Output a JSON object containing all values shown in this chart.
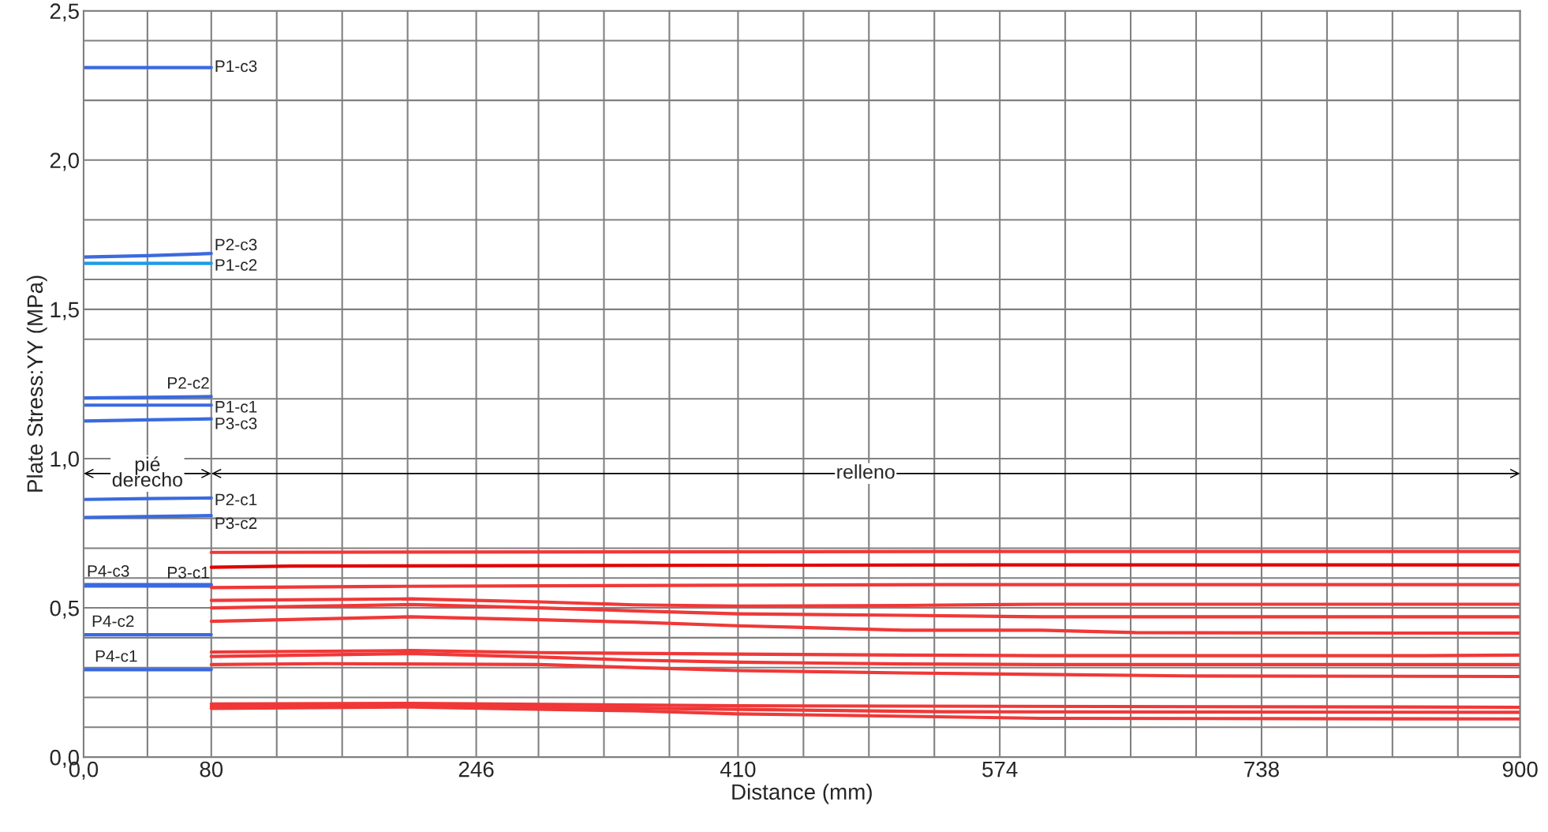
{
  "chart_data": {
    "type": "line",
    "xlabel": "Distance (mm)",
    "ylabel": "Plate Stress:YY (MPa)",
    "xlim": [
      0,
      900
    ],
    "ylim": [
      0,
      2.5
    ],
    "xticks": [
      {
        "value": 0,
        "label": "0,0"
      },
      {
        "value": 40,
        "label": null
      },
      80,
      {
        "value": 121,
        "label": null
      },
      {
        "value": 162,
        "label": null
      },
      {
        "value": 203,
        "label": null
      },
      246,
      {
        "value": 285,
        "label": null
      },
      {
        "value": 326,
        "label": null
      },
      {
        "value": 367,
        "label": null
      },
      410,
      {
        "value": 451,
        "label": null
      },
      {
        "value": 492,
        "label": null
      },
      {
        "value": 533,
        "label": null
      },
      574,
      {
        "value": 615,
        "label": null
      },
      {
        "value": 656,
        "label": null
      },
      {
        "value": 697,
        "label": null
      },
      738,
      {
        "value": 779,
        "label": null
      },
      {
        "value": 820,
        "label": null
      },
      {
        "value": 861,
        "label": null
      },
      900
    ],
    "yticks": [
      {
        "value": 0,
        "label": "0,0"
      },
      {
        "value": 0.1,
        "label": null
      },
      {
        "value": 0.2,
        "label": null
      },
      {
        "value": 0.3,
        "label": null
      },
      {
        "value": 0.4,
        "label": null
      },
      {
        "value": 0.5,
        "label": "0,5"
      },
      {
        "value": 0.6,
        "label": null
      },
      {
        "value": 0.7,
        "label": null
      },
      {
        "value": 0.8,
        "label": null
      },
      {
        "value": 1.0,
        "label": "1,0"
      },
      {
        "value": 1.2,
        "label": null
      },
      {
        "value": 1.4,
        "label": null
      },
      {
        "value": 1.5,
        "label": "1,5"
      },
      {
        "value": 1.6,
        "label": null
      },
      {
        "value": 1.8,
        "label": null
      },
      {
        "value": 2.0,
        "label": "2,0"
      },
      {
        "value": 2.2,
        "label": null
      },
      {
        "value": 2.4,
        "label": null
      },
      {
        "value": 2.5,
        "label": "2,5"
      }
    ],
    "grid": true,
    "legend": false,
    "line_style": "solid",
    "marker": "none",
    "annotations": [
      "pié\nderecho",
      "relleno"
    ],
    "series": [
      {
        "name": "P1-c3",
        "color": "#3a6ae0",
        "x": [
          0,
          80
        ],
        "values": [
          2.31,
          2.31
        ]
      },
      {
        "name": "P2-c3",
        "color": "#3a6ae0",
        "x": [
          0,
          40,
          80
        ],
        "values": [
          1.675,
          1.68,
          1.687
        ]
      },
      {
        "name": "P1-c2",
        "color": "#1e9be6",
        "x": [
          0,
          80
        ],
        "values": [
          1.654,
          1.654
        ]
      },
      {
        "name": "P2-c2",
        "color": "#3a6ae0",
        "x": [
          0,
          40,
          80
        ],
        "values": [
          1.203,
          1.205,
          1.208
        ]
      },
      {
        "name": "P1-c1",
        "color": "#3a6ae0",
        "x": [
          0,
          80
        ],
        "values": [
          1.179,
          1.179
        ]
      },
      {
        "name": "P3-c3",
        "color": "#3a6ae0",
        "x": [
          0,
          40,
          80
        ],
        "values": [
          1.126,
          1.13,
          1.133
        ]
      },
      {
        "name": "P2-c1",
        "color": "#3a6ae0",
        "x": [
          0,
          40,
          80
        ],
        "values": [
          0.863,
          0.866,
          0.868
        ]
      },
      {
        "name": "P3-c2",
        "color": "#3a6ae0",
        "x": [
          0,
          40,
          80
        ],
        "values": [
          0.803,
          0.806,
          0.809
        ]
      },
      {
        "name": "P4-c3",
        "color": "#3a6ae0",
        "x": [
          0,
          80
        ],
        "values": [
          0.578,
          0.578
        ]
      },
      {
        "name": "P3-c1",
        "color": "#3a6ae0",
        "x": [
          0,
          80
        ],
        "values": [
          0.573,
          0.573
        ]
      },
      {
        "name": "P4-c2",
        "color": "#3a6ae0",
        "x": [
          0,
          80
        ],
        "values": [
          0.41,
          0.41
        ]
      },
      {
        "name": "P4-c1",
        "color": "#3a6ae0",
        "x": [
          0,
          80
        ],
        "values": [
          0.293,
          0.293
        ]
      },
      {
        "color": "#f03838",
        "x": [
          80,
          538,
          900
        ],
        "values": [
          0.686,
          0.689,
          0.689
        ]
      },
      {
        "color": "#e00000",
        "x": [
          80,
          130,
          560,
          900
        ],
        "values": [
          0.636,
          0.64,
          0.644,
          0.644
        ]
      },
      {
        "color": "#f03838",
        "x": [
          80,
          190,
          540,
          900
        ],
        "values": [
          0.568,
          0.572,
          0.578,
          0.578
        ]
      },
      {
        "color": "#f03838",
        "x": [
          80,
          205,
          286,
          345,
          410,
          514,
          600,
          780,
          900
        ],
        "values": [
          0.525,
          0.53,
          0.52,
          0.51,
          0.506,
          0.508,
          0.512,
          0.512,
          0.512
        ]
      },
      {
        "color": "#f03838",
        "x": [
          80,
          205,
          286,
          345,
          410,
          514,
          600,
          900
        ],
        "values": [
          0.5,
          0.511,
          0.5,
          0.49,
          0.48,
          0.475,
          0.47,
          0.47
        ]
      },
      {
        "color": "#f03838",
        "x": [
          80,
          205,
          286,
          345,
          410,
          447,
          514,
          600,
          659,
          900
        ],
        "values": [
          0.455,
          0.47,
          0.46,
          0.452,
          0.44,
          0.435,
          0.425,
          0.425,
          0.417,
          0.415
        ]
      },
      {
        "color": "#f03838",
        "x": [
          80,
          205,
          286,
          410,
          514,
          600,
          839,
          900
        ],
        "values": [
          0.352,
          0.357,
          0.35,
          0.345,
          0.342,
          0.34,
          0.34,
          0.342
        ]
      },
      {
        "color": "#f03838",
        "x": [
          80,
          205,
          286,
          345,
          410,
          514,
          600,
          900
        ],
        "values": [
          0.337,
          0.347,
          0.335,
          0.325,
          0.318,
          0.312,
          0.31,
          0.31
        ]
      },
      {
        "color": "#f03838",
        "x": [
          80,
          150,
          286,
          345,
          410,
          514,
          600,
          691,
          900
        ],
        "values": [
          0.31,
          0.313,
          0.31,
          0.3,
          0.29,
          0.282,
          0.277,
          0.272,
          0.27
        ]
      },
      {
        "color": "#f03838",
        "x": [
          80,
          205,
          410,
          900
        ],
        "values": [
          0.178,
          0.18,
          0.172,
          0.167
        ]
      },
      {
        "color": "#f03838",
        "x": [
          80,
          205,
          410,
          538,
          900
        ],
        "values": [
          0.17,
          0.173,
          0.16,
          0.152,
          0.15
        ]
      },
      {
        "color": "#f03838",
        "x": [
          80,
          205,
          345,
          410,
          600,
          900
        ],
        "values": [
          0.163,
          0.168,
          0.155,
          0.145,
          0.13,
          0.128
        ]
      }
    ]
  }
}
